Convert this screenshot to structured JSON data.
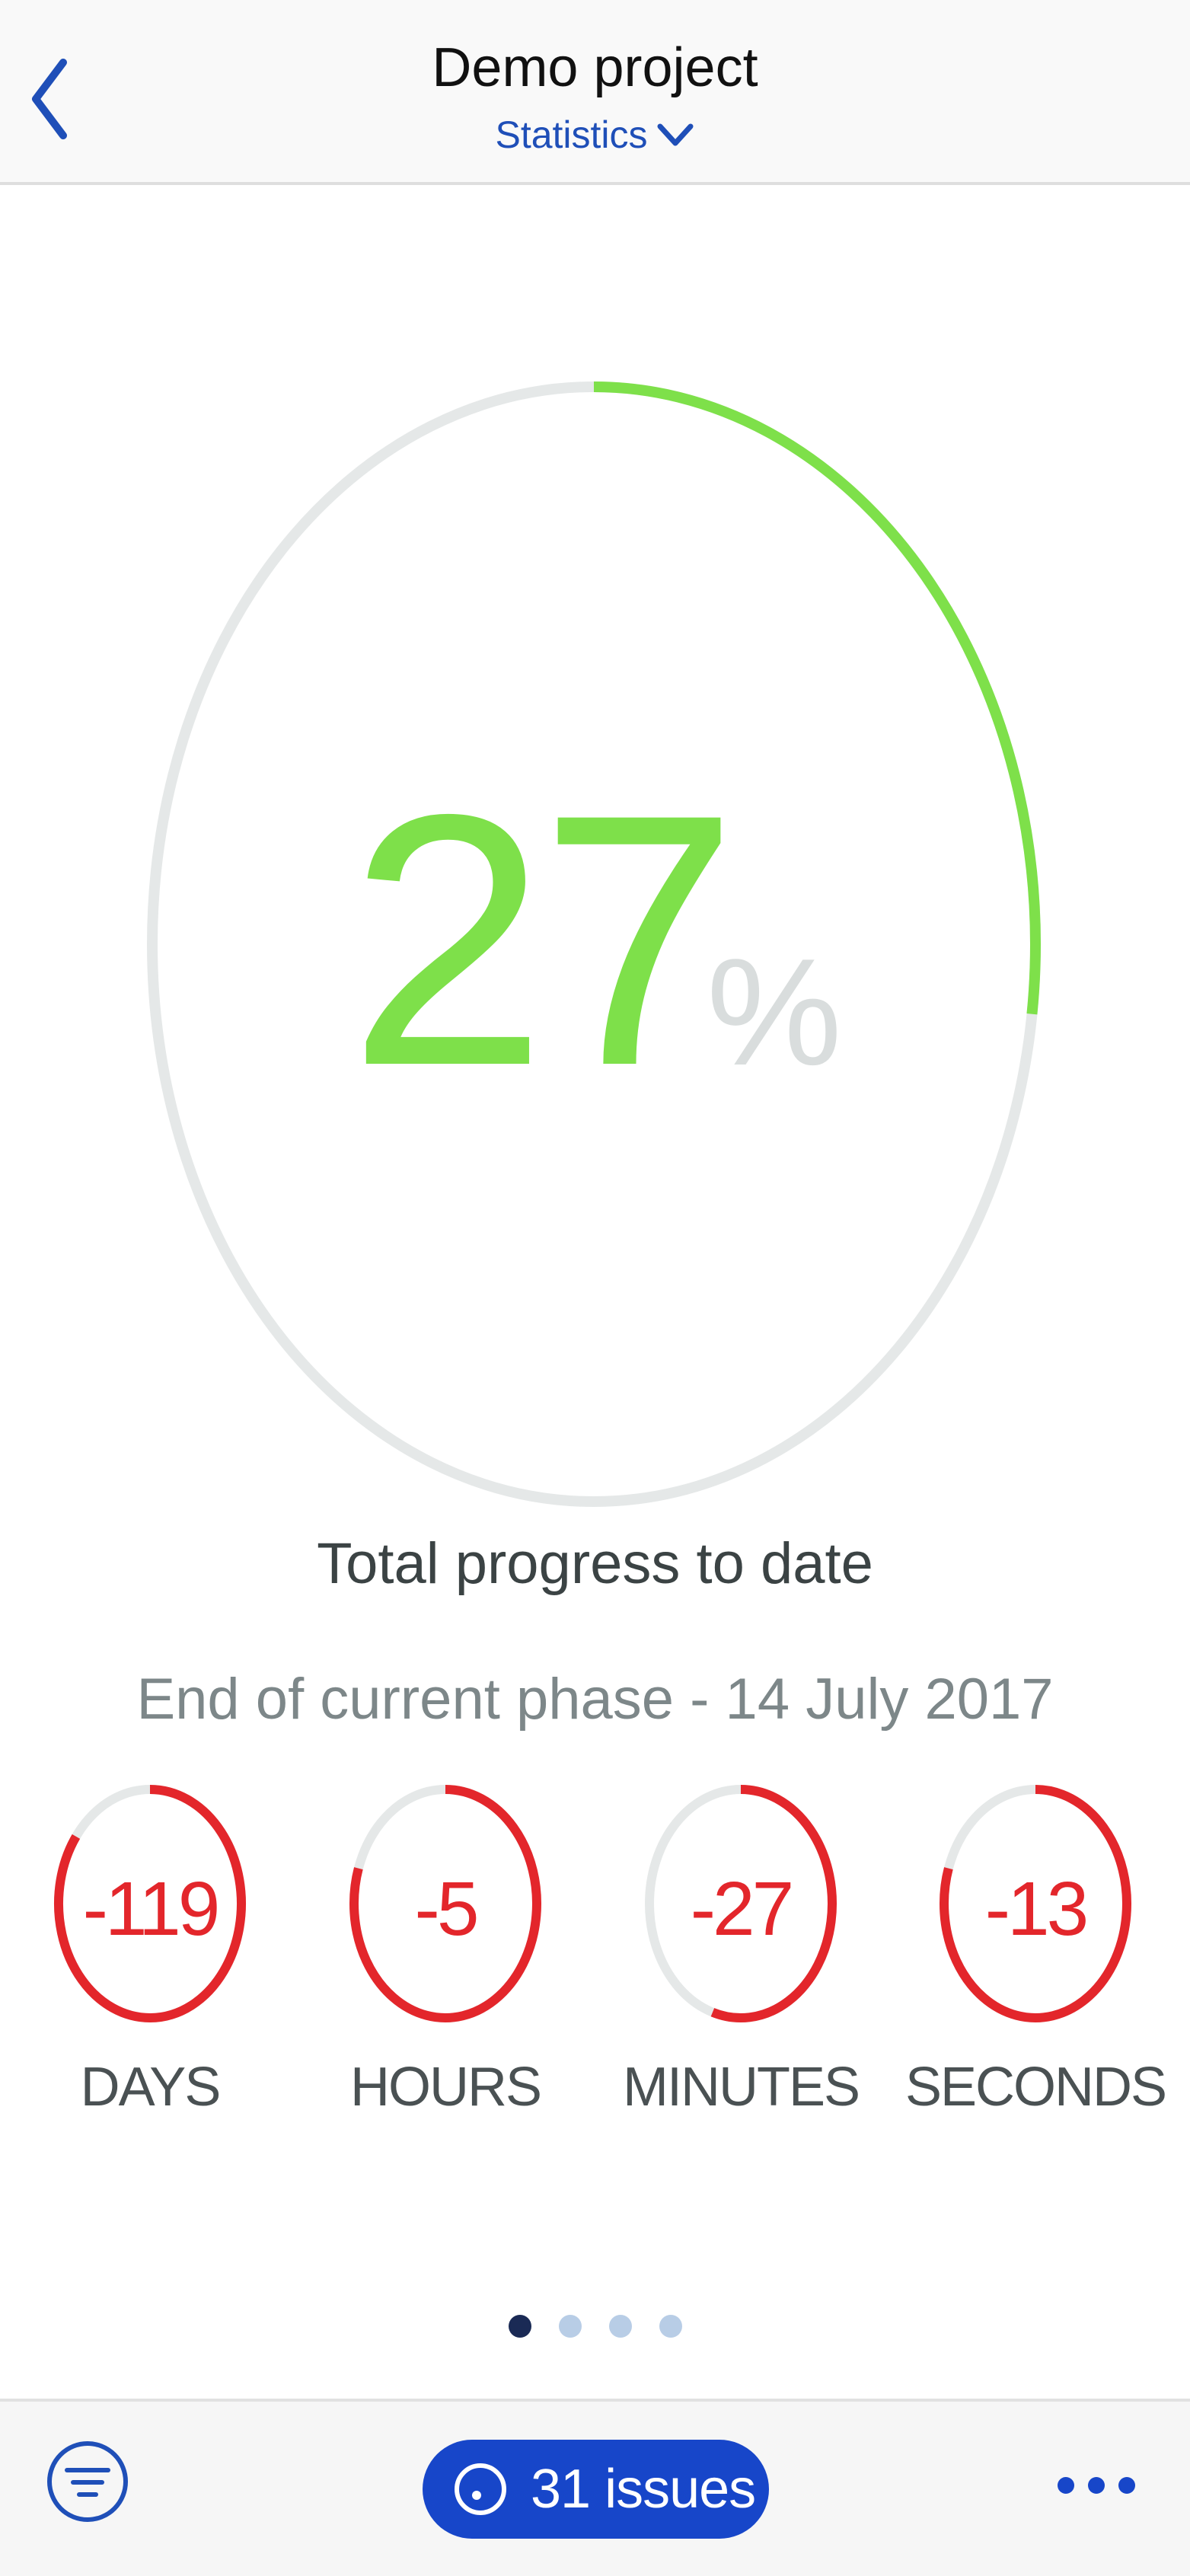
{
  "header": {
    "title": "Demo project",
    "view_selector": "Statistics"
  },
  "progress": {
    "value": "27",
    "unit": "%",
    "fraction": 0.27,
    "caption": "Total progress to date"
  },
  "phase": {
    "text": "End of current phase - 14 July 2017"
  },
  "countdown": [
    {
      "value": "-119",
      "label": "DAYS",
      "fraction": 0.85
    },
    {
      "value": "-5",
      "label": "HOURS",
      "fraction": 0.8
    },
    {
      "value": "-27",
      "label": "MINUTES",
      "fraction": 0.55
    },
    {
      "value": "-13",
      "label": "SECONDS",
      "fraction": 0.8
    }
  ],
  "pager": {
    "count": 4,
    "active_index": 0
  },
  "toolbar": {
    "issues_label": "31 issues"
  },
  "colors": {
    "accent": "#1746c9",
    "progress": "#7ee04a",
    "countdown": "#e3262b",
    "track": "#e5e8e8"
  },
  "icons": {
    "back": "chevron-left-icon",
    "dropdown": "chevron-down-icon",
    "filter": "filter-icon",
    "issues": "issue-circle-icon",
    "more": "more-horizontal-icon"
  }
}
